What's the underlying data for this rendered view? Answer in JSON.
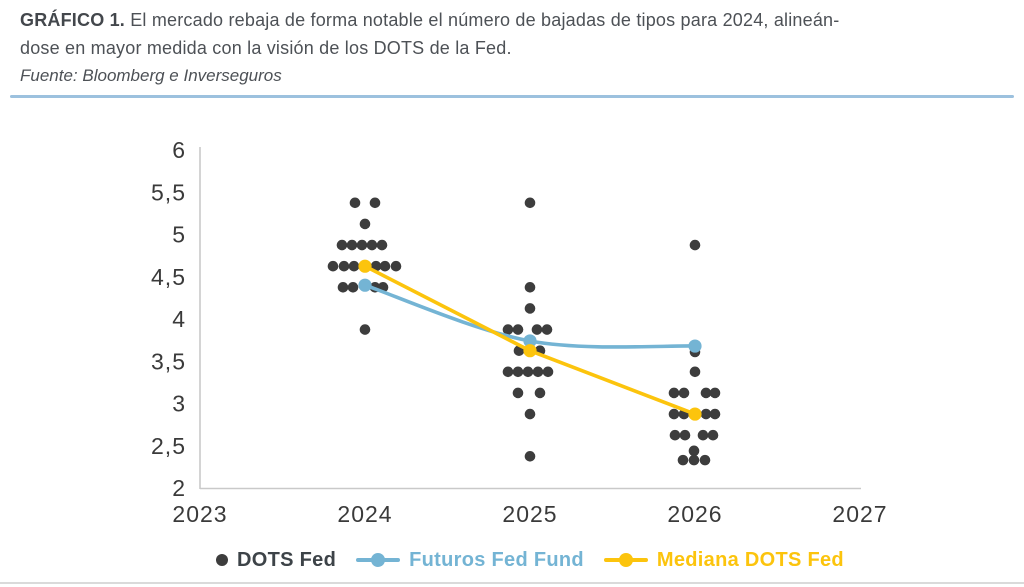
{
  "header": {
    "title_prefix": "GRÁFICO 1.",
    "title_line1": " El mercado rebaja de forma notable el número de bajadas de tipos para 2024, alineán-",
    "title_line2": "dose en mayor medida con la visión de los DOTS de la Fed.",
    "source": "Fuente: Bloomberg e Inverseguros"
  },
  "colors": {
    "title_text": "#4d5156",
    "header_rule": "#9cc1de",
    "axis_line": "#c9c9c9",
    "tick_text": "#3a3a3a",
    "dots_fed": "#3d3d3d",
    "futuros": "#74b4d4",
    "mediana": "#fcc40d",
    "bottom_rule": "#dadada"
  },
  "chart_data": {
    "type": "scatter",
    "title": "",
    "xlabel": "",
    "ylabel": "",
    "x_categories": [
      "2023",
      "2024",
      "2025",
      "2026",
      "2027"
    ],
    "ylim": [
      2,
      6
    ],
    "grid": false,
    "y_ticks": [
      {
        "v": 2,
        "label": "2"
      },
      {
        "v": 2.5,
        "label": "2,5"
      },
      {
        "v": 3,
        "label": "3"
      },
      {
        "v": 3.5,
        "label": "3,5"
      },
      {
        "v": 4,
        "label": "4"
      },
      {
        "v": 4.5,
        "label": "4,5"
      },
      {
        "v": 5,
        "label": "5"
      },
      {
        "v": 5.5,
        "label": "5,5"
      },
      {
        "v": 6,
        "label": "6"
      }
    ],
    "scatter": {
      "name": "DOTS Fed",
      "color": "#3d3d3d",
      "point_radius": 5.3,
      "points": [
        [
          "2024",
          5.375,
          -10
        ],
        [
          "2024",
          5.375,
          10
        ],
        [
          "2024",
          5.125,
          0
        ],
        [
          "2024",
          4.875,
          -23
        ],
        [
          "2024",
          4.875,
          -13
        ],
        [
          "2024",
          4.875,
          -3
        ],
        [
          "2024",
          4.875,
          7
        ],
        [
          "2024",
          4.875,
          17
        ],
        [
          "2024",
          4.625,
          -32
        ],
        [
          "2024",
          4.625,
          -21
        ],
        [
          "2024",
          4.625,
          -11
        ],
        [
          "2024",
          4.625,
          11
        ],
        [
          "2024",
          4.625,
          20
        ],
        [
          "2024",
          4.625,
          31
        ],
        [
          "2024",
          4.375,
          -22
        ],
        [
          "2024",
          4.375,
          -12
        ],
        [
          "2024",
          4.375,
          10
        ],
        [
          "2024",
          4.375,
          18
        ],
        [
          "2024",
          3.875,
          0
        ],
        [
          "2025",
          5.375,
          0
        ],
        [
          "2025",
          4.375,
          0
        ],
        [
          "2025",
          4.125,
          0
        ],
        [
          "2025",
          3.875,
          -22
        ],
        [
          "2025",
          3.875,
          -12
        ],
        [
          "2025",
          3.875,
          7
        ],
        [
          "2025",
          3.875,
          17
        ],
        [
          "2025",
          3.625,
          -11
        ],
        [
          "2025",
          3.625,
          10
        ],
        [
          "2025",
          3.375,
          -22
        ],
        [
          "2025",
          3.375,
          -12
        ],
        [
          "2025",
          3.375,
          -2
        ],
        [
          "2025",
          3.375,
          8
        ],
        [
          "2025",
          3.375,
          18
        ],
        [
          "2025",
          3.125,
          -12
        ],
        [
          "2025",
          3.125,
          10
        ],
        [
          "2025",
          2.875,
          0
        ],
        [
          "2025",
          2.375,
          0
        ],
        [
          "2026",
          4.875,
          0
        ],
        [
          "2026",
          3.61,
          0
        ],
        [
          "2026",
          3.375,
          0
        ],
        [
          "2026",
          3.125,
          -21
        ],
        [
          "2026",
          3.125,
          -11
        ],
        [
          "2026",
          3.125,
          11
        ],
        [
          "2026",
          3.125,
          20
        ],
        [
          "2026",
          2.875,
          -21
        ],
        [
          "2026",
          2.875,
          -11
        ],
        [
          "2026",
          2.875,
          11
        ],
        [
          "2026",
          2.875,
          20
        ],
        [
          "2026",
          2.625,
          -20
        ],
        [
          "2026",
          2.625,
          -10
        ],
        [
          "2026",
          2.625,
          8
        ],
        [
          "2026",
          2.625,
          18
        ],
        [
          "2026",
          2.44,
          -1
        ],
        [
          "2026",
          2.33,
          -12
        ],
        [
          "2026",
          2.33,
          -1
        ],
        [
          "2026",
          2.33,
          10
        ]
      ]
    },
    "series": [
      {
        "name": "Futuros Fed Fund",
        "color": "#74b4d4",
        "smooth": true,
        "marker_radius": 6.6,
        "points": [
          [
            "2024",
            4.4
          ],
          [
            "2025",
            3.74
          ],
          [
            "2026",
            3.68
          ]
        ]
      },
      {
        "name": "Mediana DOTS Fed",
        "color": "#fcc40d",
        "smooth": false,
        "marker_radius": 6.6,
        "points": [
          [
            "2024",
            4.625
          ],
          [
            "2025",
            3.625
          ],
          [
            "2026",
            2.875
          ]
        ]
      }
    ],
    "legend": [
      {
        "label": "DOTS Fed",
        "color": "#3d4348",
        "marker_color": "#3d3d3d",
        "marker": "dot"
      },
      {
        "label": "Futuros Fed Fund",
        "color": "#74b4d4",
        "marker_color": "#74b4d4",
        "marker": "line-dot"
      },
      {
        "label": "Mediana DOTS Fed",
        "color": "#fcc40d",
        "marker_color": "#fcc40d",
        "marker": "line-dot"
      }
    ],
    "legend_position": "bottom"
  }
}
